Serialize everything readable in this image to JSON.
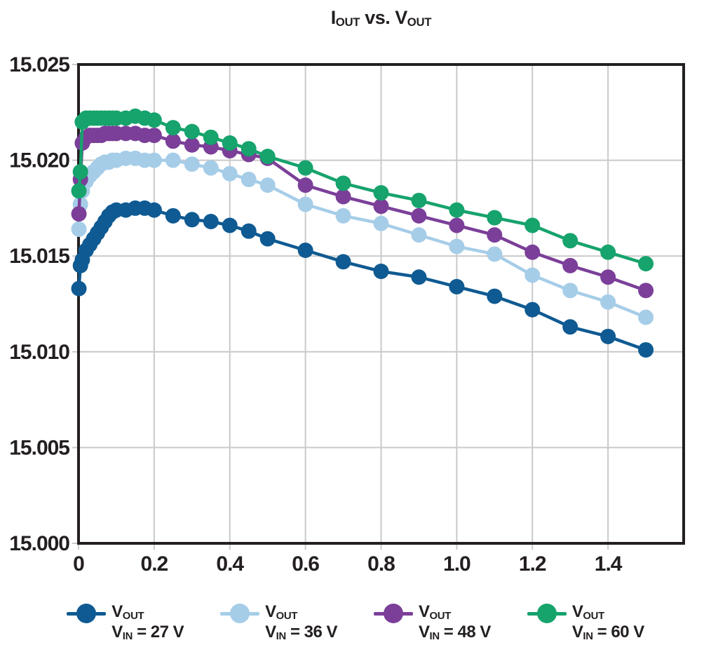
{
  "title": {
    "part1": "I",
    "part1_sub": "OUT",
    "part2": " vs. V",
    "part2_sub": "OUT"
  },
  "legend": {
    "items": [
      {
        "id": "27v",
        "symbol_main": "V",
        "symbol_sub": "OUT",
        "cond_main": "V",
        "cond_sub": "IN",
        "cond_value": "= 27 V",
        "color": "#0f5a92"
      },
      {
        "id": "36v",
        "symbol_main": "V",
        "symbol_sub": "OUT",
        "cond_main": "V",
        "cond_sub": "IN",
        "cond_value": "= 36 V",
        "color": "#a6cde8"
      },
      {
        "id": "48v",
        "symbol_main": "V",
        "symbol_sub": "OUT",
        "cond_main": "V",
        "cond_sub": "IN",
        "cond_value": "= 48 V",
        "color": "#7b3f99"
      },
      {
        "id": "60v",
        "symbol_main": "V",
        "symbol_sub": "OUT",
        "cond_main": "V",
        "cond_sub": "IN",
        "cond_value": "= 60 V",
        "color": "#16a36c"
      }
    ]
  },
  "chart_data": {
    "type": "line",
    "title": "IOUT vs. VOUT",
    "xlabel": "",
    "ylabel": "",
    "xlim": [
      0,
      1.6
    ],
    "ylim": [
      15.0,
      15.025
    ],
    "grid": true,
    "grid_color": "#c9c9c9",
    "axis_color": "#231f20",
    "legend_position": "bottom",
    "marker": "circle",
    "x_ticks": {
      "labels": [
        "0",
        "0.2",
        "0.4",
        "0.6",
        "0.8",
        "1.0",
        "1.2",
        "1.4"
      ],
      "values": [
        0,
        0.2,
        0.4,
        0.6,
        0.8,
        1.0,
        1.2,
        1.4
      ]
    },
    "y_ticks": {
      "labels": [
        "15.000",
        "15.005",
        "15.010",
        "15.015",
        "15.020",
        "15.025"
      ],
      "values": [
        15.0,
        15.005,
        15.01,
        15.015,
        15.02,
        15.025
      ]
    },
    "x": [
      0.001,
      0.005,
      0.01,
      0.02,
      0.03,
      0.04,
      0.05,
      0.06,
      0.07,
      0.08,
      0.09,
      0.1,
      0.125,
      0.15,
      0.175,
      0.2,
      0.25,
      0.3,
      0.35,
      0.4,
      0.45,
      0.5,
      0.6,
      0.7,
      0.8,
      0.9,
      1.0,
      1.1,
      1.2,
      1.3,
      1.4,
      1.5
    ],
    "series": [
      {
        "id": "27v",
        "name": "VOUT, VIN = 27 V",
        "color": "#0f5a92",
        "values": [
          15.0133,
          15.0145,
          15.0148,
          15.0153,
          15.0156,
          15.0159,
          15.0162,
          15.0165,
          15.0168,
          15.0171,
          15.0173,
          15.0174,
          15.0174,
          15.0175,
          15.0175,
          15.0174,
          15.0171,
          15.0169,
          15.0168,
          15.0166,
          15.0163,
          15.0159,
          15.0153,
          15.0147,
          15.0142,
          15.0139,
          15.0134,
          15.0129,
          15.0122,
          15.0113,
          15.0108,
          15.0101
        ]
      },
      {
        "id": "36v",
        "name": "VOUT, VIN = 36 V",
        "color": "#a6cde8",
        "values": [
          15.0164,
          15.0177,
          15.0184,
          15.0189,
          15.0192,
          15.0194,
          15.0196,
          15.0198,
          15.0199,
          15.0199,
          15.02,
          15.02,
          15.0201,
          15.0201,
          15.02,
          15.02,
          15.02,
          15.0198,
          15.0196,
          15.0193,
          15.019,
          15.0187,
          15.0177,
          15.0171,
          15.0167,
          15.0161,
          15.0155,
          15.0151,
          15.014,
          15.0132,
          15.0126,
          15.0118
        ]
      },
      {
        "id": "48v",
        "name": "VOUT, VIN = 48 V",
        "color": "#7b3f99",
        "values": [
          15.0172,
          15.019,
          15.0209,
          15.0212,
          15.0213,
          15.0213,
          15.0213,
          15.0213,
          15.0214,
          15.0214,
          15.0214,
          15.0214,
          15.0214,
          15.0214,
          15.0213,
          15.0213,
          15.021,
          15.0208,
          15.0207,
          15.0205,
          15.0203,
          15.0201,
          15.0187,
          15.0181,
          15.0176,
          15.0171,
          15.0166,
          15.0161,
          15.0152,
          15.0145,
          15.0139,
          15.0132
        ]
      },
      {
        "id": "60v",
        "name": "VOUT, VIN = 60 V",
        "color": "#16a36c",
        "values": [
          15.0184,
          15.0194,
          15.022,
          15.0222,
          15.0222,
          15.0222,
          15.0222,
          15.0222,
          15.0222,
          15.0222,
          15.0222,
          15.0222,
          15.0222,
          15.0223,
          15.0222,
          15.0221,
          15.0217,
          15.0215,
          15.0212,
          15.0209,
          15.0206,
          15.0202,
          15.0196,
          15.0188,
          15.0183,
          15.0179,
          15.0174,
          15.017,
          15.0166,
          15.0158,
          15.0152,
          15.0146
        ]
      }
    ]
  }
}
